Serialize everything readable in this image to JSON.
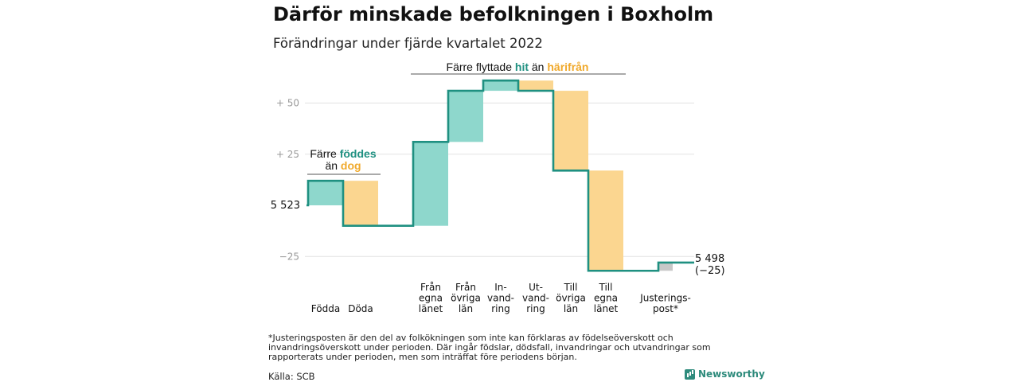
{
  "title": "Därför minskade befolkningen i Boxholm",
  "subtitle": "Förändringar under fjärde kvartalet 2022",
  "colors": {
    "increase": "#8ed7cc",
    "decrease": "#fbd690",
    "adjustment": "#c8c8c8",
    "line": "#1f9081",
    "teal_text": "#1f9081",
    "orange_text": "#f0a92b",
    "grid": "#e2e2e2",
    "tick": "#9a9a9a"
  },
  "chart_data": {
    "type": "waterfall",
    "start_value": 5523,
    "start_label": "5 523",
    "end_value": 5498,
    "end_label": "5 498",
    "end_change_label": "(−25)",
    "y_ticks": [
      {
        "value": 50,
        "label": "+ 50"
      },
      {
        "value": 25,
        "label": "+ 25"
      },
      {
        "value": -25,
        "label": "−25"
      }
    ],
    "ylim": [
      -30,
      80
    ],
    "steps": [
      {
        "category": "Födda",
        "change": 12,
        "kind": "increase",
        "group": 0
      },
      {
        "category": "Döda",
        "change": -22,
        "kind": "decrease",
        "group": 0
      },
      {
        "category": "Från egna länet",
        "change": 41,
        "kind": "increase",
        "group": 1
      },
      {
        "category": "Från övriga län",
        "change": 25,
        "kind": "increase",
        "group": 1
      },
      {
        "category": "In- vand- ring",
        "change": 5,
        "kind": "increase",
        "group": 1
      },
      {
        "category": "Ut- vand- ring",
        "change": -5,
        "kind": "decrease",
        "group": 1
      },
      {
        "category": "Till övriga län",
        "change": -39,
        "kind": "decrease",
        "group": 1
      },
      {
        "category": "Till egna länet",
        "change": -49,
        "kind": "decrease",
        "group": 1
      },
      {
        "category": "Justerings- post*",
        "change": 4,
        "kind": "adjustment",
        "group": 2
      }
    ],
    "category_lines": [
      [
        "Födda"
      ],
      [
        "Döda"
      ],
      [
        "Från",
        "egna",
        "länet"
      ],
      [
        "Från",
        "övriga",
        "län"
      ],
      [
        "In-",
        "vand-",
        "ring"
      ],
      [
        "Ut-",
        "vand-",
        "ring"
      ],
      [
        "Till",
        "övriga",
        "län"
      ],
      [
        "Till",
        "egna",
        "länet"
      ],
      [
        "Justerings-",
        "post*"
      ]
    ],
    "annotations": [
      {
        "text_parts": [
          "Färre ",
          "föddes"
        ],
        "text_parts_2": [
          "än ",
          "dog"
        ]
      },
      {
        "text_parts": [
          "Färre flyttade ",
          "hit",
          " än ",
          "härifrån"
        ]
      }
    ]
  },
  "footnote": "*Justeringsposten är den del av folkökningen som inte kan förklaras av födelseöverskott och invandringsöverskott under perioden. Där ingår födslar, dödsfall, invandringar och utvandringar som rapporterats under perioden, men som inträffat före periodens början.",
  "source": "Källa: SCB",
  "brand": "Newsworthy"
}
